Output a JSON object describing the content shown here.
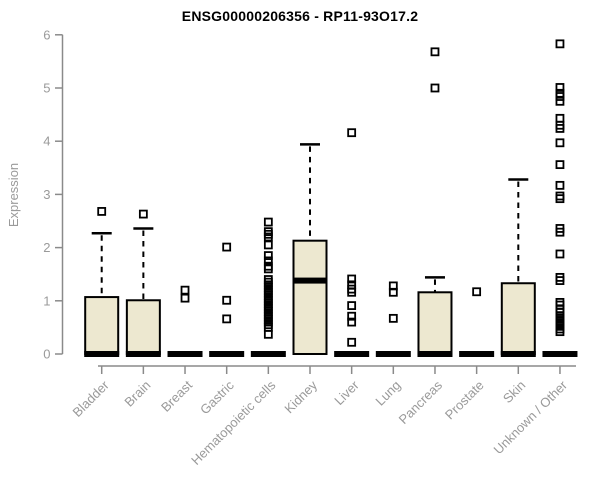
{
  "colors": {
    "box_fill": "#EDE8D0",
    "box_border": "#000000",
    "median": "#000000",
    "outlier": "#000000",
    "axis": "#8a8a8a",
    "tick_label": "#9a9a9a",
    "title": "#000000"
  },
  "chart_data": {
    "type": "boxplot",
    "title": "ENSG00000206356 - RP11-93O17.2",
    "xlabel": "",
    "ylabel": "Expression",
    "ylim": [
      0,
      6
    ],
    "yticks": [
      0,
      1,
      2,
      3,
      4,
      5,
      6
    ],
    "grid": false,
    "legend": false,
    "categories": [
      "Bladder",
      "Brain",
      "Breast",
      "Gastric",
      "Hematopoietic cells",
      "Kidney",
      "Liver",
      "Lung",
      "Pancreas",
      "Prostate",
      "Skin",
      "Unknown / Other"
    ],
    "series": [
      {
        "name": "Bladder",
        "q1": 0,
        "median": 0,
        "q3": 1.07,
        "whisker_low": 0,
        "whisker_high": 2.27,
        "outliers": [
          2.68
        ]
      },
      {
        "name": "Brain",
        "q1": 0,
        "median": 0,
        "q3": 1.01,
        "whisker_low": 0,
        "whisker_high": 2.36,
        "outliers": [
          2.63
        ]
      },
      {
        "name": "Breast",
        "q1": 0,
        "median": 0,
        "q3": 0,
        "whisker_low": 0,
        "whisker_high": 0,
        "outliers": [
          1.05,
          1.2
        ]
      },
      {
        "name": "Gastric",
        "q1": 0,
        "median": 0,
        "q3": 0,
        "whisker_low": 0,
        "whisker_high": 0,
        "outliers": [
          0.66,
          1.01,
          2.01
        ]
      },
      {
        "name": "Hematopoietic cells",
        "q1": 0,
        "median": 0,
        "q3": 0,
        "whisker_low": 0,
        "whisker_high": 0,
        "outliers": [
          0.37,
          0.5,
          0.55,
          0.6,
          0.65,
          0.7,
          0.75,
          0.8,
          0.85,
          0.9,
          0.95,
          1.0,
          1.05,
          1.1,
          1.15,
          1.2,
          1.25,
          1.3,
          1.35,
          1.4,
          1.6,
          1.65,
          1.75,
          1.85,
          2.05,
          2.2,
          2.25,
          2.3,
          2.48
        ]
      },
      {
        "name": "Kidney",
        "q1": 0,
        "median": 1.38,
        "q3": 2.13,
        "whisker_low": 0,
        "whisker_high": 3.94,
        "outliers": []
      },
      {
        "name": "Liver",
        "q1": 0,
        "median": 0,
        "q3": 0,
        "whisker_low": 0,
        "whisker_high": 0,
        "outliers": [
          0.22,
          0.6,
          0.71,
          0.91,
          1.16,
          1.22,
          1.3,
          1.41,
          4.16
        ]
      },
      {
        "name": "Lung",
        "q1": 0,
        "median": 0,
        "q3": 0,
        "whisker_low": 0,
        "whisker_high": 0,
        "outliers": [
          0.67,
          1.16,
          1.28
        ]
      },
      {
        "name": "Pancreas",
        "q1": 0,
        "median": 0,
        "q3": 1.16,
        "whisker_low": 0,
        "whisker_high": 1.44,
        "outliers": [
          5.0,
          5.68
        ]
      },
      {
        "name": "Prostate",
        "q1": 0,
        "median": 0,
        "q3": 0,
        "whisker_low": 0,
        "whisker_high": 0,
        "outliers": [
          1.17
        ]
      },
      {
        "name": "Skin",
        "q1": 0,
        "median": 0,
        "q3": 1.33,
        "whisker_low": 0,
        "whisker_high": 3.28,
        "outliers": []
      },
      {
        "name": "Unknown / Other",
        "q1": 0,
        "median": 0,
        "q3": 0,
        "whisker_low": 0,
        "whisker_high": 0,
        "outliers": [
          0.42,
          0.47,
          0.52,
          0.58,
          0.62,
          0.68,
          0.72,
          0.78,
          0.85,
          0.92,
          0.97,
          1.38,
          1.44,
          1.88,
          2.29,
          2.36,
          2.92,
          2.97,
          3.17,
          3.56,
          3.97,
          4.24,
          4.3,
          4.43,
          4.75,
          4.84,
          4.9,
          5.01,
          5.83
        ]
      }
    ]
  }
}
